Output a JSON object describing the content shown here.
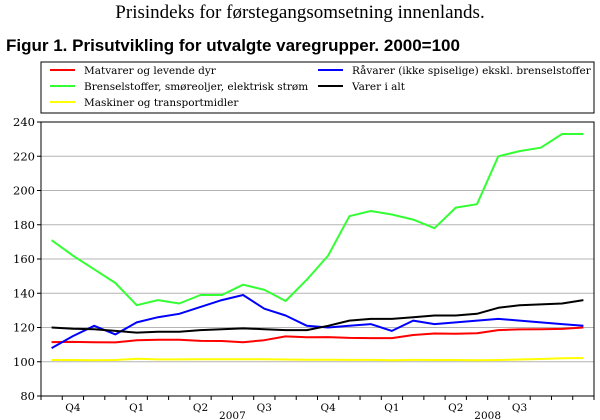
{
  "header": {
    "subtitle": "Prisindeks for førstegangsomsetning innenlands.",
    "figure_title": "Figur 1. Prisutvikling for utvalgte varegrupper. 2000=100"
  },
  "chart_data": {
    "type": "line",
    "title": "Figur 1. Prisutvikling for utvalgte varegrupper. 2000=100",
    "xlabel": "",
    "ylabel": "",
    "ylim": [
      80,
      240
    ],
    "y_ticks": [
      80,
      100,
      120,
      140,
      160,
      180,
      200,
      220,
      240
    ],
    "grid": true,
    "legend_position": "top",
    "x": [
      "2006-09",
      "2006-10",
      "2006-11",
      "2006-12",
      "2007-01",
      "2007-02",
      "2007-03",
      "2007-04",
      "2007-05",
      "2007-06",
      "2007-07",
      "2007-08",
      "2007-09",
      "2007-10",
      "2007-11",
      "2007-12",
      "2008-01",
      "2008-02",
      "2008-03",
      "2008-04",
      "2008-05",
      "2008-06",
      "2008-07",
      "2008-08",
      "2008-09",
      "2008-10"
    ],
    "x_tick_labels": [
      {
        "label": "Q4",
        "month": 1
      },
      {
        "label": "Q1",
        "month": 4
      },
      {
        "label": "Q2",
        "month": 7
      },
      {
        "label": "Q3",
        "month": 10
      },
      {
        "label": "Q4",
        "month": 13
      },
      {
        "label": "Q1",
        "month": 16
      },
      {
        "label": "Q2",
        "month": 19
      },
      {
        "label": "Q3",
        "month": 22
      }
    ],
    "year_labels": [
      {
        "label": "2007",
        "month": 8.5
      },
      {
        "label": "2008",
        "month": 20.5
      }
    ],
    "series": [
      {
        "name": "Matvarer og levende dyr",
        "color": "#ff0000",
        "values": [
          111.5,
          111.6,
          111.4,
          111.3,
          112.5,
          112.9,
          112.9,
          112.2,
          112.1,
          111.4,
          112.6,
          114.8,
          114.3,
          114.4,
          113.9,
          113.8,
          113.8,
          115.6,
          116.5,
          116.4,
          116.7,
          118.5,
          118.9,
          119.0,
          119.2,
          120.0
        ]
      },
      {
        "name": "Brenselstoffer, smøreoljer, elektrisk strøm",
        "color": "#33ff33",
        "values": [
          171.0,
          162.0,
          154.0,
          146.0,
          133.0,
          136.0,
          134.0,
          139.0,
          139.0,
          145.0,
          142.0,
          135.5,
          148.0,
          162.0,
          185.0,
          188.0,
          186.0,
          183.0,
          178.0,
          190.0,
          192.0,
          220.0,
          223.0,
          225.0,
          233.0,
          233.0
        ]
      },
      {
        "name": "Maskiner og transportmidler",
        "color": "#ffff00",
        "values": [
          101.0,
          101.0,
          100.9,
          101.0,
          101.7,
          101.4,
          101.4,
          101.5,
          101.5,
          101.5,
          101.5,
          101.3,
          101.2,
          101.2,
          101.1,
          101.1,
          100.9,
          101.1,
          101.0,
          101.0,
          100.9,
          101.0,
          101.3,
          101.6,
          102.0,
          102.2
        ]
      },
      {
        "name": "Råvarer (ikke spiselige) ekskl. brenselstoffer",
        "color": "#0000ff",
        "values": [
          108.0,
          115.0,
          121.0,
          116.0,
          123.0,
          126.0,
          128.0,
          132.0,
          136.0,
          139.0,
          131.0,
          127.0,
          121.0,
          120.0,
          121.0,
          122.0,
          118.0,
          124.0,
          122.0,
          123.0,
          124.0,
          125.0,
          124.0,
          123.0,
          122.0,
          121.0
        ]
      },
      {
        "name": "Varer i alt",
        "color": "#000000",
        "values": [
          120.0,
          119.3,
          119.0,
          118.0,
          117.0,
          117.5,
          117.5,
          118.5,
          119.0,
          119.5,
          119.0,
          118.5,
          118.5,
          121.0,
          124.0,
          125.0,
          125.0,
          126.0,
          127.0,
          127.0,
          128.0,
          131.5,
          133.0,
          133.5,
          134.0,
          136.0
        ]
      }
    ]
  }
}
